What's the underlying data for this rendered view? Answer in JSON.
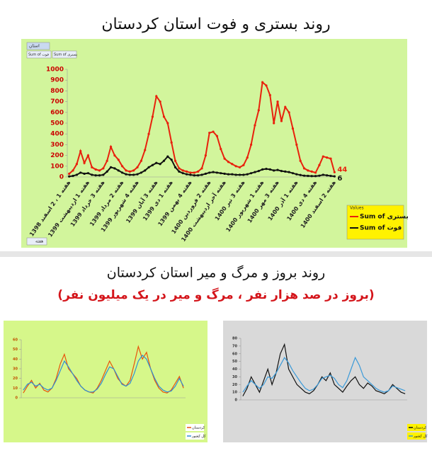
{
  "section_title": "روند بروز و مرگ و میر استان کردستان",
  "section_subtitle": "(بروز در صد هزار نفر ، مرگ و میر در یک میلیون نفر)",
  "chart_data": [
    {
      "type": "line",
      "title": "روند بستری و فوت استان کردستان",
      "filter_label": "استان",
      "axis_button": "هفته",
      "legend_title": "Values",
      "markers": true,
      "label_last": true,
      "legend": "bottom-right",
      "categories": [
        "هفته 1 ، 2 اسفند 1398",
        null,
        null,
        null,
        null,
        "هفته 1 اردیبهشت 1399",
        null,
        null,
        null,
        "هفته 3 خرداد 1399",
        null,
        null,
        null,
        null,
        "هفته 2 مرداد 1399",
        null,
        null,
        null,
        "هفته 4 شهریور 1399",
        null,
        null,
        null,
        null,
        "هفته 3 آبان 1399",
        null,
        null,
        null,
        "هفته 1 دی 1399",
        null,
        null,
        null,
        null,
        "هفته 4 بهمن 1399",
        null,
        null,
        null,
        null,
        "هفته 2 فروردین 1400",
        null,
        null,
        null,
        "هفته آخر اردیبهشت 1400",
        null,
        null,
        null,
        null,
        "هفته 3 تیر 1400",
        null,
        null,
        null,
        null,
        "هفته 1 شهریور 1400",
        null,
        null,
        null,
        "هفته 3 مهر 1400",
        null,
        null,
        null,
        null,
        "هفته 1 آذر 1400",
        null,
        null,
        null,
        null,
        "هفته 4 دی 1400",
        null,
        null,
        null,
        null,
        "هفته 2 اسفند 1400"
      ],
      "ylim": [
        0,
        1000
      ],
      "yticks": [
        0,
        100,
        200,
        300,
        400,
        500,
        600,
        700,
        800,
        900,
        1000
      ],
      "series": [
        {
          "name": "Sum of بستری",
          "color": "#e8210c",
          "values": [
            30,
            60,
            120,
            240,
            130,
            200,
            90,
            70,
            60,
            80,
            150,
            280,
            200,
            160,
            100,
            60,
            50,
            60,
            90,
            150,
            250,
            400,
            560,
            750,
            700,
            560,
            500,
            320,
            150,
            80,
            60,
            50,
            40,
            40,
            50,
            80,
            200,
            410,
            420,
            380,
            260,
            170,
            140,
            120,
            100,
            90,
            110,
            180,
            300,
            480,
            620,
            880,
            850,
            760,
            500,
            700,
            520,
            650,
            600,
            450,
            300,
            150,
            80,
            60,
            50,
            40,
            110,
            190,
            180,
            170,
            44
          ]
        },
        {
          "name": "Sum of فوت",
          "color": "#111111",
          "values": [
            5,
            10,
            20,
            40,
            30,
            35,
            20,
            15,
            15,
            20,
            50,
            90,
            80,
            60,
            40,
            25,
            20,
            20,
            25,
            40,
            60,
            90,
            110,
            130,
            120,
            150,
            190,
            160,
            90,
            50,
            35,
            25,
            20,
            15,
            15,
            20,
            30,
            40,
            45,
            40,
            35,
            30,
            25,
            25,
            20,
            20,
            20,
            25,
            35,
            45,
            55,
            70,
            75,
            70,
            60,
            65,
            55,
            50,
            45,
            35,
            25,
            18,
            12,
            10,
            8,
            8,
            12,
            20,
            15,
            10,
            6
          ]
        }
      ]
    },
    {
      "type": "line",
      "ylim": [
        0,
        60
      ],
      "yticks": [
        0,
        10,
        20,
        30,
        40,
        50,
        60
      ],
      "legend": "bottom-right",
      "series": [
        {
          "name": "کردستان",
          "color": "#e8530c",
          "values": [
            5,
            12,
            18,
            10,
            15,
            8,
            6,
            10,
            20,
            35,
            45,
            30,
            25,
            20,
            12,
            8,
            6,
            5,
            10,
            18,
            28,
            38,
            30,
            20,
            15,
            12,
            18,
            35,
            53,
            40,
            47,
            30,
            18,
            10,
            6,
            5,
            8,
            15,
            22,
            10
          ]
        },
        {
          "name": "کل کشور",
          "color": "#2e8fd6",
          "values": [
            8,
            14,
            16,
            12,
            14,
            10,
            8,
            10,
            18,
            28,
            38,
            32,
            25,
            18,
            12,
            8,
            6,
            6,
            9,
            15,
            24,
            32,
            30,
            22,
            14,
            12,
            15,
            25,
            38,
            44,
            40,
            30,
            20,
            12,
            8,
            6,
            7,
            12,
            20,
            12
          ]
        }
      ]
    },
    {
      "type": "line",
      "ylim": [
        0,
        80
      ],
      "yticks": [
        0,
        10,
        20,
        30,
        40,
        50,
        60,
        70,
        80
      ],
      "legend": "bottom-right",
      "series": [
        {
          "name": "کردستان",
          "color": "#111111",
          "values": [
            5,
            15,
            30,
            20,
            10,
            25,
            40,
            20,
            35,
            60,
            72,
            40,
            30,
            20,
            15,
            10,
            8,
            12,
            20,
            30,
            25,
            35,
            20,
            15,
            10,
            18,
            25,
            30,
            20,
            15,
            22,
            18,
            12,
            10,
            8,
            12,
            20,
            15,
            10,
            8
          ]
        },
        {
          "name": "کل کشور",
          "color": "#3a9ad9",
          "values": [
            10,
            18,
            25,
            20,
            15,
            20,
            30,
            28,
            35,
            45,
            55,
            48,
            38,
            30,
            22,
            15,
            12,
            14,
            20,
            28,
            30,
            32,
            28,
            20,
            16,
            25,
            40,
            55,
            45,
            30,
            25,
            20,
            15,
            12,
            10,
            12,
            18,
            16,
            14,
            12
          ]
        }
      ]
    }
  ]
}
